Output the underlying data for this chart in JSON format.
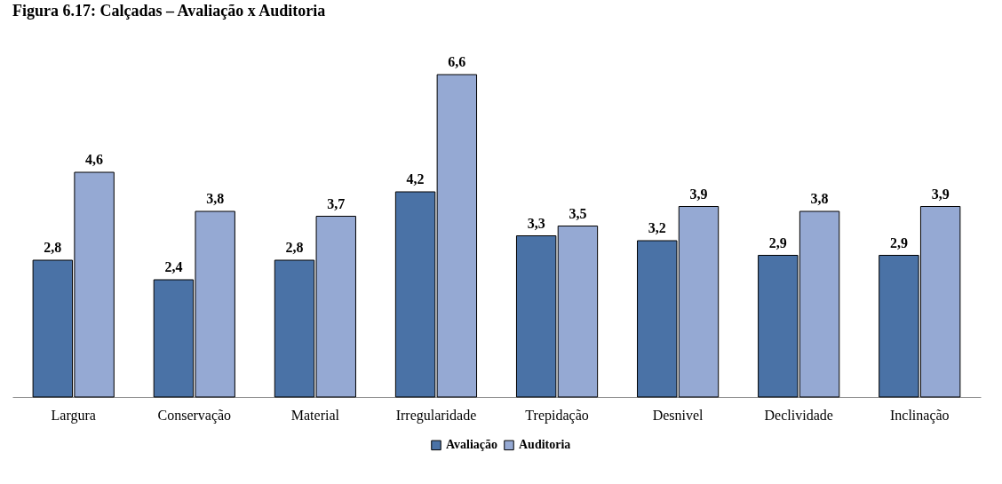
{
  "chart_data": {
    "type": "bar",
    "title": "Figura 6.17: Calçadas – Avaliação x Auditoria",
    "categories": [
      "Largura",
      "Conservação",
      "Material",
      "Irregularidade",
      "Trepidação",
      "Desnivel",
      "Declividade",
      "Inclinação"
    ],
    "series": [
      {
        "name": "Avaliação",
        "color": "#4a72a6",
        "values": [
          2.8,
          2.4,
          2.8,
          4.2,
          3.3,
          3.2,
          2.9,
          2.9
        ],
        "value_labels": [
          "2,8",
          "2,4",
          "2,8",
          "4,2",
          "3,3",
          "3,2",
          "2,9",
          "2,9"
        ]
      },
      {
        "name": "Auditoria",
        "color": "#95a9d3",
        "values": [
          4.6,
          3.8,
          3.7,
          6.6,
          3.5,
          3.9,
          3.8,
          3.9
        ],
        "value_labels": [
          "4,6",
          "3,8",
          "3,7",
          "6,6",
          "3,5",
          "3,9",
          "3,8",
          "3,9"
        ]
      }
    ],
    "legend": "bottom",
    "grid": false
  }
}
